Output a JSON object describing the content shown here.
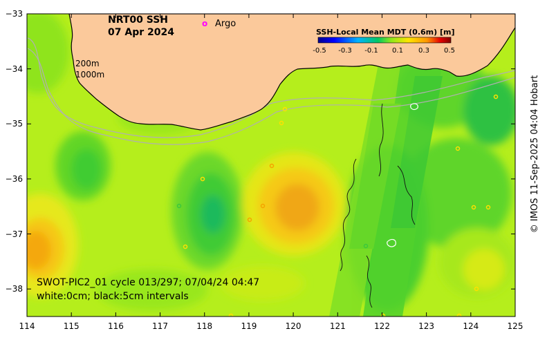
{
  "title": {
    "product": "NRT00 SSH",
    "date": "07 Apr 2024"
  },
  "legend": {
    "argo_marker": "o",
    "argo_label": "Argo",
    "colorbar_title": "SSH-Local Mean MDT (0.6m) [m]",
    "colorbar_ticks": [
      "-0.5",
      "-0.3",
      "-0.1",
      "0.1",
      "0.3",
      "0.5"
    ],
    "colorbar_range": [
      -0.5,
      0.5
    ]
  },
  "isobaths": [
    "200m",
    "1000m"
  ],
  "annotation": {
    "line1": "SWOT-PIC2_01 cycle 013/297; 07/04/24 04:47",
    "line2": "white:0cm; black:5cm intervals"
  },
  "credit": "© IMOS 11-Sep-2025 04:04 Hobart",
  "axes": {
    "x_ticks": [
      "114",
      "115",
      "116",
      "117",
      "118",
      "119",
      "120",
      "121",
      "122",
      "123",
      "124",
      "125"
    ],
    "y_ticks": [
      "−33",
      "−34",
      "−35",
      "−36",
      "−37",
      "−38"
    ],
    "lon_range": [
      114,
      125
    ],
    "lat_range": [
      -38.5,
      -33
    ]
  },
  "colors": {
    "land": "#fbc99b",
    "ocean_base": "#b5ee1c",
    "argo": "#ff00ff"
  }
}
